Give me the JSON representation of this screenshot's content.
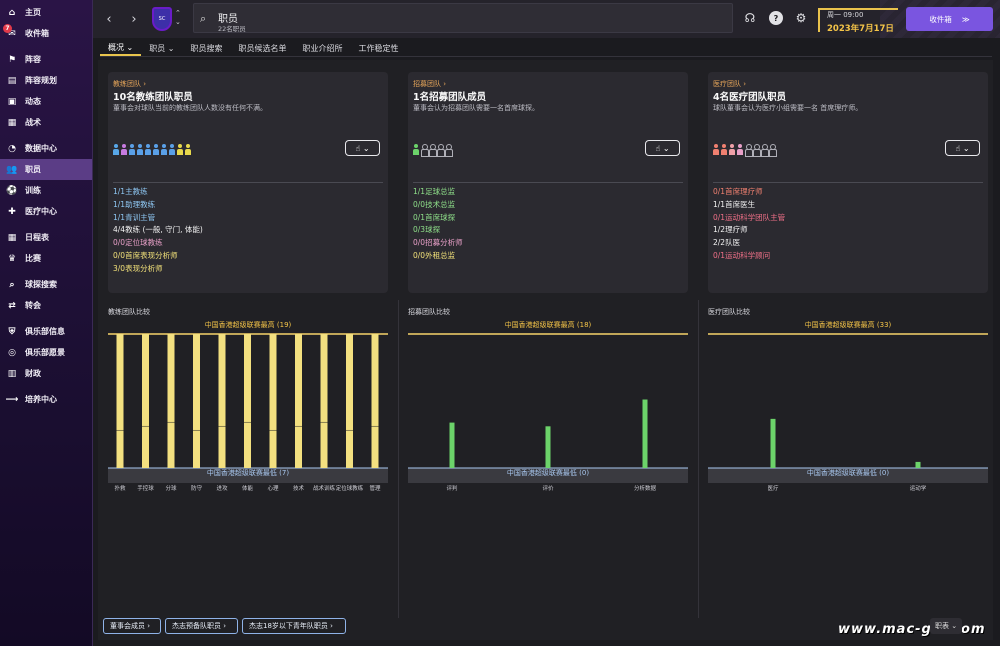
{
  "sidebar": {
    "items": [
      {
        "label": "主页",
        "icon": "home-icon",
        "glyph": "⌂"
      },
      {
        "label": "收件箱",
        "icon": "inbox-icon",
        "glyph": "✉",
        "badge": "7"
      },
      {
        "label": "阵容",
        "icon": "squad-icon",
        "glyph": "⚑"
      },
      {
        "label": "阵容规划",
        "icon": "squad-planner-icon",
        "glyph": "▤"
      },
      {
        "label": "动态",
        "icon": "dynamics-icon",
        "glyph": "▣"
      },
      {
        "label": "战术",
        "icon": "tactics-icon",
        "glyph": "▦"
      },
      {
        "label": "数据中心",
        "icon": "data-hub-icon",
        "glyph": "◔"
      },
      {
        "label": "职员",
        "icon": "staff-icon",
        "glyph": "👥",
        "active": true
      },
      {
        "label": "训练",
        "icon": "training-icon",
        "glyph": "⚽"
      },
      {
        "label": "医疗中心",
        "icon": "medical-icon",
        "glyph": "✚"
      },
      {
        "label": "日程表",
        "icon": "calendar-icon",
        "glyph": "▦"
      },
      {
        "label": "比赛",
        "icon": "trophy-icon",
        "glyph": "♛"
      },
      {
        "label": "球探搜索",
        "icon": "scouting-icon",
        "glyph": "⌕"
      },
      {
        "label": "转会",
        "icon": "transfers-icon",
        "glyph": "⇄"
      },
      {
        "label": "俱乐部信息",
        "icon": "club-info-icon",
        "glyph": "⛨"
      },
      {
        "label": "俱乐部愿景",
        "icon": "club-vision-icon",
        "glyph": "◎"
      },
      {
        "label": "财政",
        "icon": "finances-icon",
        "glyph": "▥"
      },
      {
        "label": "培养中心",
        "icon": "development-icon",
        "glyph": "⟶"
      }
    ]
  },
  "topbar": {
    "crest_text": "SC",
    "search_title": "职员",
    "search_sub": "22名职员",
    "date_line1": "周一 09:00",
    "date_line2": "2023年7月17日",
    "inbox_label": "收件箱",
    "inbox_arrow": "≫"
  },
  "tabs": [
    {
      "label": "概况 ⌄",
      "active": true
    },
    {
      "label": "职员 ⌄"
    },
    {
      "label": "职员搜索"
    },
    {
      "label": "职员候选名单"
    },
    {
      "label": "职业介绍所"
    },
    {
      "label": "工作稳定性"
    }
  ],
  "panels": [
    {
      "link": "教练团队 ›",
      "link_color": "#e8a75a",
      "heading": "10名教练团队职员",
      "desc": "董事会对球队当前的教练团队人数没有任何不满。",
      "people": [
        "#58a7e8",
        "#c77be0",
        "#5aa0e8",
        "#5aa0e8",
        "#5aa0e8",
        "#5aa0e8",
        "#5aa0e8",
        "#5aa0e8",
        "#e8d94c",
        "#e8d94c"
      ],
      "empty_count": 0,
      "button": "☝ ⌄",
      "roles": [
        {
          "text": "1/1主教练",
          "color": "#8fc8f4"
        },
        {
          "text": "1/1助理教练",
          "color": "#8fc8f4"
        },
        {
          "text": "1/1青训主管",
          "color": "#8fc8f4"
        },
        {
          "text": "4/4教练 (一般, 守门, 体能)",
          "color": "#f3f3f3"
        },
        {
          "text": "0/0定位球教练",
          "color": "#e8a0c8"
        },
        {
          "text": "0/0首席表现分析师",
          "color": "#f3e27a"
        },
        {
          "text": "3/0表现分析师",
          "color": "#f3e27a"
        }
      ]
    },
    {
      "link": "招募团队 ›",
      "link_color": "#e8a75a",
      "heading": "1名招募团队成员",
      "desc": "董事会认为招募团队需要一名首席球探。",
      "people": [
        "#6cd36a"
      ],
      "empty_count": 4,
      "button": "☝ ⌄",
      "roles": [
        {
          "text": "1/1足球总监",
          "color": "#8fe08a"
        },
        {
          "text": "0/0技术总监",
          "color": "#8fe08a"
        },
        {
          "text": "0/1首席球探",
          "color": "#8fe08a"
        },
        {
          "text": "0/3球探",
          "color": "#8fe08a"
        },
        {
          "text": "0/0招募分析师",
          "color": "#e8a0c8"
        },
        {
          "text": "0/0外租总监",
          "color": "#f3e27a"
        }
      ]
    },
    {
      "link": "医疗团队 ›",
      "link_color": "#e8a75a",
      "heading": "4名医疗团队职员",
      "desc": "球队董事会认为医疗小组需要一名 首席理疗师。",
      "people": [
        "#f08070",
        "#f08070",
        "#f0a0a8",
        "#e8a0c8"
      ],
      "empty_count": 4,
      "button": "☝ ⌄",
      "roles": [
        {
          "text": "0/1首席理疗师",
          "color": "#f08070"
        },
        {
          "text": "1/1首席医生",
          "color": "#f3f3f3"
        },
        {
          "text": "0/1运动科学团队主管",
          "color": "#f07088"
        },
        {
          "text": "1/2理疗师",
          "color": "#f3f3f3"
        },
        {
          "text": "2/2队医",
          "color": "#f3f3f3"
        },
        {
          "text": "0/1运动科学顾问",
          "color": "#f07088"
        }
      ]
    }
  ],
  "chart_data": [
    {
      "type": "bar",
      "title": "教练团队比较",
      "max_label": "中国香港超级联赛最高 (19)",
      "min_label": "中国香港超级联赛最低 (7)",
      "categories": [
        "扑救",
        "手控球",
        "分球",
        "防守",
        "进攻",
        "体能",
        "心理",
        "技术",
        "战术训练",
        "定位球教练",
        "管理"
      ],
      "values": [
        19,
        19,
        19,
        19,
        19,
        19,
        19,
        19,
        19,
        19,
        19
      ],
      "ylim": [
        7,
        19
      ],
      "bar_color": "#f3e080"
    },
    {
      "type": "bar",
      "title": "招募团队比较",
      "max_label": "中国香港超级联赛最高 (18)",
      "min_label": "中国香港超级联赛最低 (0)",
      "categories": [
        "评判",
        "评价",
        "分析数据"
      ],
      "values": [
        6.1,
        5.6,
        9.2
      ],
      "ylim": [
        0,
        18
      ],
      "bar_color": "#6cd36a"
    },
    {
      "type": "bar",
      "title": "医疗团队比较",
      "max_label": "中国香港超级联赛最高 (33)",
      "min_label": "中国香港超级联赛最低 (0)",
      "categories": [
        "医疗",
        "运动学"
      ],
      "values": [
        12.1,
        1.5
      ],
      "ylim": [
        0,
        33
      ],
      "bar_color": "#6cd36a"
    }
  ],
  "footer": {
    "buttons": [
      "董事会成员 ›",
      "杰志预备队职员 ›",
      "杰志18岁以下青年队职员 ›"
    ],
    "corner": "职表 ⌄",
    "watermark": "www.mac-gm.com"
  }
}
